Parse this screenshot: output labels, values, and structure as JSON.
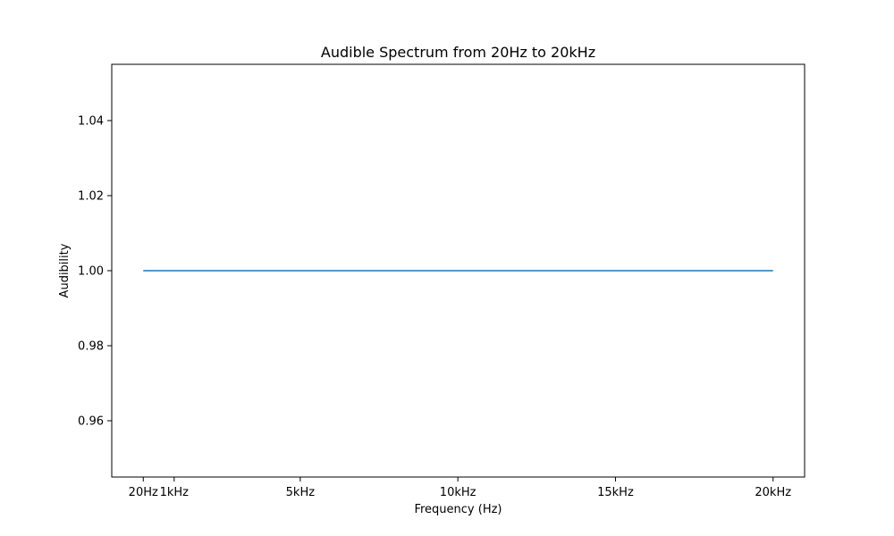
{
  "chart_data": {
    "type": "line",
    "title": "Audible Spectrum from 20Hz to 20kHz",
    "xlabel": "Frequency (Hz)",
    "ylabel": "Audibility",
    "xlim": [
      -980,
      21000
    ],
    "ylim": [
      0.945,
      1.055
    ],
    "x_ticks": [
      {
        "value": 20,
        "label": "20Hz"
      },
      {
        "value": 1000,
        "label": "1kHz"
      },
      {
        "value": 5000,
        "label": "5kHz"
      },
      {
        "value": 10000,
        "label": "10kHz"
      },
      {
        "value": 15000,
        "label": "15kHz"
      },
      {
        "value": 20000,
        "label": "20kHz"
      }
    ],
    "y_ticks": [
      {
        "value": 0.96,
        "label": "0.96"
      },
      {
        "value": 0.98,
        "label": "0.98"
      },
      {
        "value": 1.0,
        "label": "1.00"
      },
      {
        "value": 1.02,
        "label": "1.02"
      },
      {
        "value": 1.04,
        "label": "1.04"
      }
    ],
    "grid": false,
    "series": [
      {
        "color": "#1f77b4",
        "x": [
          20,
          20000
        ],
        "y": [
          1.0,
          1.0
        ]
      }
    ]
  }
}
